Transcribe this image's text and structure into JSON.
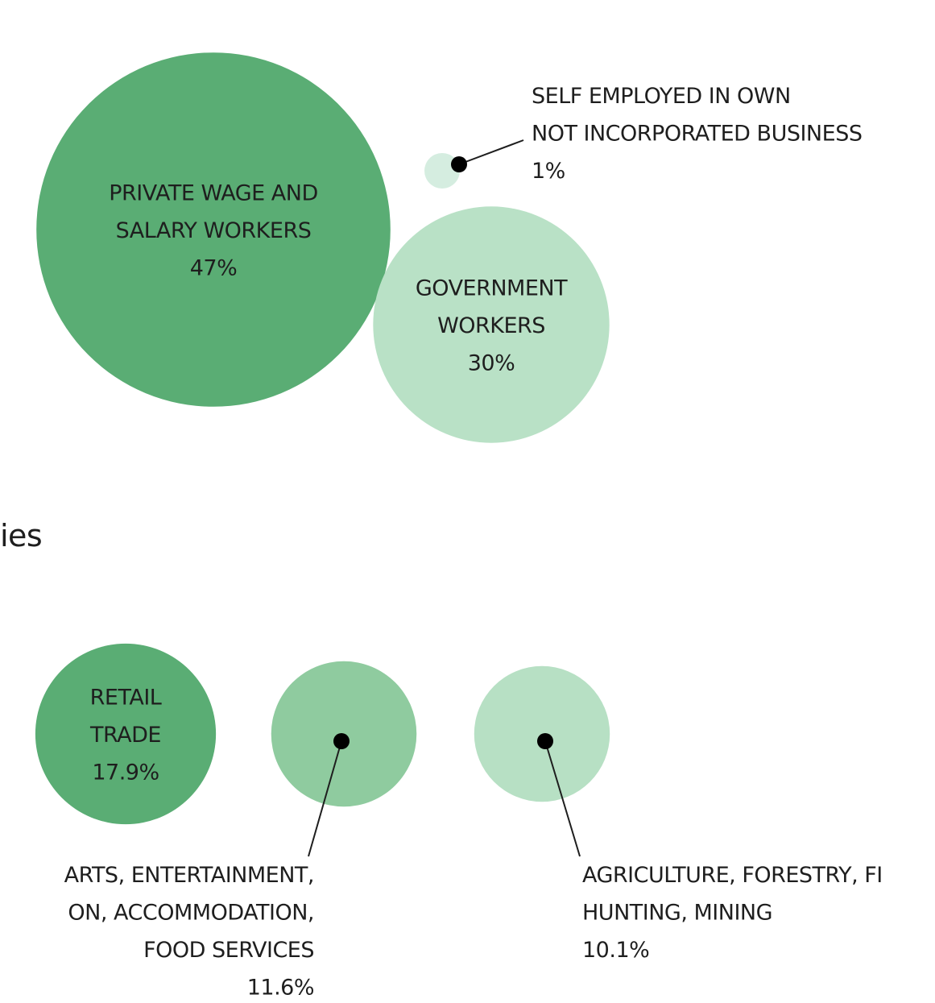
{
  "chart_data": [
    {
      "type": "bubble",
      "categories": [
        [
          "PRIVATE WAGE AND",
          "SALARY WORKERS"
        ],
        [
          "GOVERNMENT",
          "WORKERS"
        ],
        [
          "SELF EMPLOYED IN OWN",
          "NOT INCORPORATED BUSINESS"
        ]
      ],
      "values": [
        47,
        30,
        1
      ],
      "value_labels": [
        "47%",
        "30%",
        "1%"
      ],
      "colors": [
        "#5aad74",
        "#b9e1c6",
        "#d5ede0"
      ]
    },
    {
      "type": "bubble",
      "title": "ies",
      "categories": [
        [
          "RETAIL",
          "TRADE"
        ],
        [
          "ARTS, ENTERTAINMENT,",
          "ON, ACCOMMODATION,",
          "FOOD SERVICES"
        ],
        [
          "AGRICULTURE, FORESTRY, FI",
          "HUNTING, MINING"
        ]
      ],
      "values": [
        17.9,
        11.6,
        10.1
      ],
      "value_labels": [
        "17.9%",
        "11.6%",
        "10.1%"
      ],
      "colors": [
        "#5aad74",
        "#8fcb9f",
        "#b7e0c4"
      ]
    }
  ]
}
